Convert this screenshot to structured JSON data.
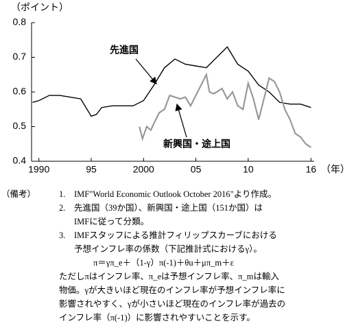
{
  "chart_data": {
    "type": "line",
    "y_unit": "（ポイント）",
    "x_unit": "（年）",
    "xlim": [
      1989.3,
      2016.3
    ],
    "ylim": [
      0.4,
      0.8
    ],
    "yticks": [
      0.4,
      0.5,
      0.6,
      0.7,
      0.8
    ],
    "xticks": [
      {
        "value": 1990,
        "label": "1990"
      },
      {
        "value": 1995,
        "label": "95"
      },
      {
        "value": 2000,
        "label": "2000"
      },
      {
        "value": 2005,
        "label": "05"
      },
      {
        "value": 2010,
        "label": "10"
      },
      {
        "value": 2016,
        "label": "16"
      }
    ],
    "series": [
      {
        "name": "先進国",
        "color": "#000000",
        "x": [
          1989.4,
          1990,
          1991,
          1992,
          1993,
          1994,
          1995,
          1995.5,
          1996,
          1997,
          1998,
          1999,
          2000,
          2001,
          2002,
          2003,
          2004,
          2005,
          2006,
          2007,
          2008,
          2009,
          2010,
          2011,
          2012,
          2013,
          2014,
          2015,
          2016
        ],
        "values": [
          0.57,
          0.575,
          0.59,
          0.59,
          0.585,
          0.58,
          0.53,
          0.535,
          0.555,
          0.56,
          0.56,
          0.56,
          0.575,
          0.62,
          0.67,
          0.695,
          0.68,
          0.675,
          0.67,
          0.7,
          0.73,
          0.68,
          0.66,
          0.62,
          0.6,
          0.57,
          0.565,
          0.565,
          0.555
        ]
      },
      {
        "name": "新興国・途上国",
        "color": "#999999",
        "x": [
          1999.6,
          1999.9,
          2000.3,
          2000.7,
          2001,
          2001.5,
          2002,
          2002.5,
          2003,
          2003.5,
          2004,
          2004.5,
          2005,
          2005.5,
          2006,
          2006.3,
          2006.7,
          2007,
          2007.5,
          2008,
          2008.5,
          2009,
          2009.5,
          2010,
          2010.5,
          2011,
          2011.5,
          2012,
          2012.5,
          2013,
          2013.5,
          2014,
          2014.5,
          2015,
          2015.5,
          2016
        ],
        "values": [
          0.5,
          0.465,
          0.5,
          0.49,
          0.51,
          0.54,
          0.55,
          0.59,
          0.585,
          0.58,
          0.585,
          0.56,
          0.59,
          0.62,
          0.65,
          0.6,
          0.595,
          0.6,
          0.61,
          0.58,
          0.6,
          0.56,
          0.55,
          0.625,
          0.58,
          0.52,
          0.58,
          0.64,
          0.63,
          0.6,
          0.55,
          0.52,
          0.48,
          0.47,
          0.45,
          0.44
        ]
      }
    ]
  },
  "notes": {
    "label": "（備考）",
    "items": [
      {
        "number": "1.",
        "lines": [
          "IMF\"World Economic Outlook October 2016\"より作成。"
        ]
      },
      {
        "number": "2.",
        "lines": [
          "先進国（39か国）、新興国・途上国（151か国）は",
          "IMFに従って分類。"
        ]
      },
      {
        "number": "3.",
        "lines": [
          "IMFスタッフによる推計フィリップスカーブにおける",
          "予想インフレ率の係数（下記推計式におけるγ）。",
          "π＝γπ_e＋（1-γ）π(-1)＋θu＋μπ_m＋ε",
          "ただしπはインフレ率、π_eは予想インフレ率、π_mは輸入",
          "物価。γが大きいほど現在のインフレ率が予想インフレ率に",
          "影響されやすく、γが小さいほど現在のインフレ率が過去の",
          "インフレ率（π(-1)）に影響されやすいことを示す。"
        ]
      }
    ]
  }
}
